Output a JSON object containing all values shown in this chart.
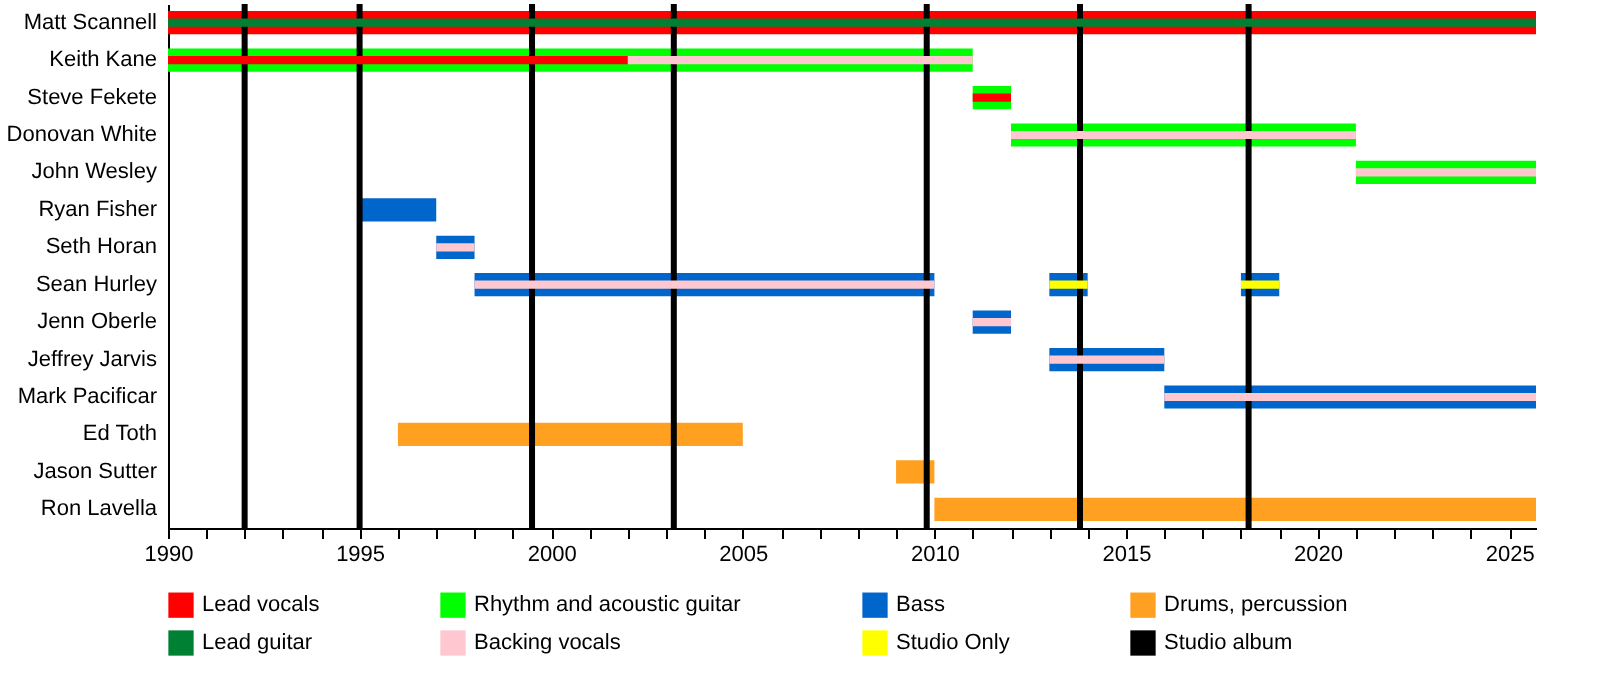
{
  "chart_data": {
    "type": "bar",
    "orientation": "horizontal",
    "categories": [
      "Matt Scannell",
      "Keith Kane",
      "Steve Fekete",
      "Donovan White",
      "John Wesley",
      "Ryan Fisher",
      "Seth Horan",
      "Sean Hurley",
      "Jenn Oberle",
      "Jeffrey Jarvis",
      "Mark Pacificar",
      "Ed Toth",
      "Jason Sutter",
      "Ron Lavella"
    ],
    "series": [
      {
        "name": "Lead vocals",
        "color": "#ff0000",
        "base": [
          1990,
          null,
          null,
          null,
          null,
          null,
          null,
          null,
          null,
          null,
          null,
          null,
          null,
          null
        ],
        "values": [
          35.7,
          null,
          null,
          null,
          null,
          null,
          null,
          null,
          null,
          null,
          null,
          null,
          null,
          null
        ]
      },
      {
        "name": "Rhythm and acoustic guitar",
        "color": "#00ff00",
        "base": [
          null,
          1990,
          2011,
          2012,
          2021,
          null,
          null,
          null,
          null,
          null,
          null,
          null,
          null,
          null
        ],
        "values": [
          null,
          21,
          1,
          9,
          4.7,
          null,
          null,
          null,
          null,
          null,
          null,
          null,
          null,
          null
        ]
      },
      {
        "name": "Bass",
        "color": "#0066cc",
        "base": [
          null,
          null,
          null,
          null,
          null,
          1995,
          1997,
          1998,
          2011,
          2013,
          2016,
          null,
          null,
          null
        ],
        "values": [
          null,
          null,
          null,
          null,
          null,
          2,
          1,
          12,
          1,
          3,
          9.7,
          null,
          null,
          null
        ]
      },
      {
        "name": "Drums, percussion",
        "color": "#ffa020",
        "base": [
          null,
          null,
          null,
          null,
          null,
          null,
          null,
          null,
          null,
          null,
          null,
          1996,
          2009,
          2010
        ],
        "values": [
          null,
          null,
          null,
          null,
          null,
          null,
          null,
          null,
          null,
          null,
          null,
          9,
          1,
          15.7
        ]
      },
      {
        "color": "#0066cc",
        "base": [
          null,
          null,
          null,
          null,
          null,
          null,
          null,
          2013,
          null,
          null,
          null,
          null,
          null,
          null
        ],
        "values": [
          null,
          null,
          null,
          null,
          null,
          null,
          null,
          1,
          null,
          null,
          null,
          null,
          null,
          null
        ]
      },
      {
        "color": "#0066cc",
        "base": [
          null,
          null,
          null,
          null,
          null,
          null,
          null,
          2018,
          null,
          null,
          null,
          null,
          null,
          null
        ],
        "values": [
          null,
          null,
          null,
          null,
          null,
          null,
          null,
          1,
          null,
          null,
          null,
          null,
          null,
          null
        ]
      },
      {
        "name": "Lead guitar",
        "color": "#008033",
        "base": [
          1990,
          null,
          null,
          null,
          null,
          null,
          null,
          null,
          null,
          null,
          null,
          null,
          null,
          null
        ],
        "values": [
          35.7,
          null,
          null,
          null,
          null,
          null,
          null,
          null,
          null,
          null,
          null,
          null,
          null,
          null
        ]
      },
      {
        "color": "#ff0000",
        "base": [
          null,
          1990,
          2011,
          null,
          null,
          null,
          null,
          null,
          null,
          null,
          null,
          null,
          null,
          null
        ],
        "values": [
          null,
          12,
          1,
          null,
          null,
          null,
          null,
          null,
          null,
          null,
          null,
          null,
          null,
          null
        ]
      },
      {
        "name": "Backing vocals",
        "color": "#ffc8d0",
        "base": [
          null,
          2002,
          null,
          2012,
          2021,
          null,
          1997,
          1998,
          2011,
          2013,
          2016,
          null,
          null,
          null
        ],
        "values": [
          null,
          9,
          null,
          9,
          4.7,
          null,
          1,
          12,
          1,
          3,
          9.7,
          null,
          null,
          null
        ]
      },
      {
        "name": "Studio Only",
        "color": "#ffff00",
        "base": [
          null,
          null,
          null,
          null,
          null,
          null,
          null,
          2013,
          null,
          null,
          null,
          null,
          null,
          null
        ],
        "values": [
          null,
          null,
          null,
          null,
          null,
          null,
          null,
          1,
          null,
          null,
          null,
          null,
          null,
          null
        ]
      },
      {
        "color": "#ffff00",
        "base": [
          null,
          null,
          null,
          null,
          null,
          null,
          null,
          2018,
          null,
          null,
          null,
          null,
          null,
          null
        ],
        "values": [
          null,
          null,
          null,
          null,
          null,
          null,
          null,
          1,
          null,
          null,
          null,
          null,
          null,
          null
        ]
      }
    ],
    "ref_lines": [
      {
        "axis": "x",
        "value": 1992,
        "label": "Studio album",
        "color": "#000000"
      },
      {
        "axis": "x",
        "value": 1995,
        "color": "#000000"
      },
      {
        "axis": "x",
        "value": 1999.5,
        "color": "#000000"
      },
      {
        "axis": "x",
        "value": 2003.2,
        "color": "#000000"
      },
      {
        "axis": "x",
        "value": 2009.8,
        "color": "#000000"
      },
      {
        "axis": "x",
        "value": 2013.8,
        "color": "#000000"
      },
      {
        "axis": "x",
        "value": 2018.2,
        "color": "#000000"
      }
    ],
    "xlim": [
      1990,
      2025.7
    ],
    "xticks": [
      1990,
      {
        "value": 1991,
        "label": null
      },
      {
        "value": 1992,
        "label": null
      },
      {
        "value": 1993,
        "label": null
      },
      {
        "value": 1994,
        "label": null
      },
      1995,
      {
        "value": 1996,
        "label": null
      },
      {
        "value": 1997,
        "label": null
      },
      {
        "value": 1998,
        "label": null
      },
      {
        "value": 1999,
        "label": null
      },
      2000,
      {
        "value": 2001,
        "label": null
      },
      {
        "value": 2002,
        "label": null
      },
      {
        "value": 2003,
        "label": null
      },
      {
        "value": 2004,
        "label": null
      },
      2005,
      {
        "value": 2006,
        "label": null
      },
      {
        "value": 2007,
        "label": null
      },
      {
        "value": 2008,
        "label": null
      },
      {
        "value": 2009,
        "label": null
      },
      2010,
      {
        "value": 2011,
        "label": null
      },
      {
        "value": 2012,
        "label": null
      },
      {
        "value": 2013,
        "label": null
      },
      {
        "value": 2014,
        "label": null
      },
      2015,
      {
        "value": 2016,
        "label": null
      },
      {
        "value": 2017,
        "label": null
      },
      {
        "value": 2018,
        "label": null
      },
      {
        "value": 2019,
        "label": null
      },
      2020,
      {
        "value": 2021,
        "label": null
      },
      {
        "value": 2022,
        "label": null
      },
      {
        "value": 2023,
        "label": null
      },
      {
        "value": 2024,
        "label": null
      },
      2025
    ],
    "grid": false,
    "legend": "bottom"
  }
}
